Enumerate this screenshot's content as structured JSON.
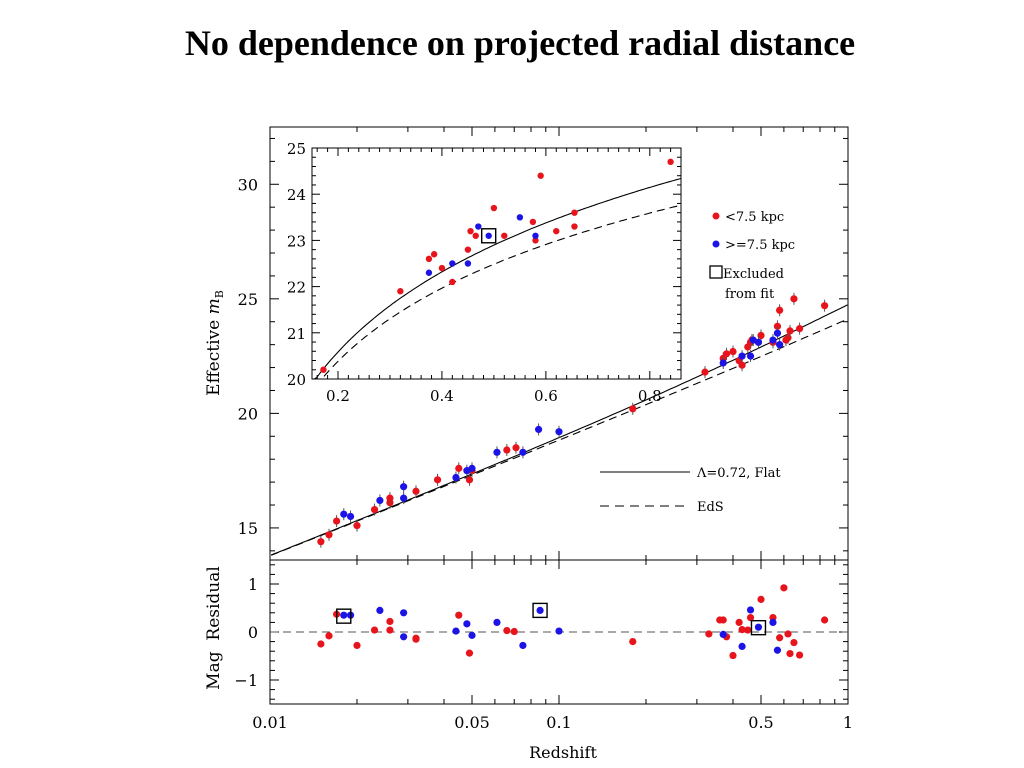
{
  "slide": {
    "title": "No dependence on projected radial distance"
  },
  "colors": {
    "inner": "#e8141c",
    "outer": "#1c14e6"
  },
  "chart_data": [
    {
      "type": "scatter",
      "panel": "main",
      "xscale": "log",
      "xlim": [
        0.01,
        1
      ],
      "ylim": [
        13.6,
        32.5
      ],
      "xlabel": "Redshift",
      "ylabel": "Effective m_B",
      "ylabel_main": "Effective ",
      "ylabel_italic": "m",
      "ylabel_sub": "B",
      "xticks": [
        0.01,
        0.05,
        0.1,
        0.5,
        1
      ],
      "xtick_labels": [
        "0.01",
        "0.05",
        "0.1",
        "0.5",
        "1"
      ],
      "yticks": [
        15,
        20,
        25,
        30
      ],
      "ytick_labels": [
        "15",
        "20",
        "25",
        "30"
      ],
      "models_legend": [
        {
          "label": "Λ=0.72, Flat",
          "style": "solid"
        },
        {
          "label": "EdS",
          "style": "dashed"
        }
      ],
      "series": [
        {
          "name": "<7.5 kpc",
          "color": "#e8141c",
          "points": [
            [
              0.015,
              14.4
            ],
            [
              0.016,
              14.7
            ],
            [
              0.017,
              15.3
            ],
            [
              0.02,
              15.1
            ],
            [
              0.023,
              15.8
            ],
            [
              0.026,
              16.1
            ],
            [
              0.026,
              16.3
            ],
            [
              0.032,
              16.6
            ],
            [
              0.038,
              17.1
            ],
            [
              0.045,
              17.6
            ],
            [
              0.049,
              17.1
            ],
            [
              0.05,
              17.5
            ],
            [
              0.066,
              18.4
            ],
            [
              0.071,
              18.5
            ],
            [
              0.18,
              20.2
            ],
            [
              0.32,
              21.8
            ],
            [
              0.37,
              22.4
            ],
            [
              0.38,
              22.6
            ],
            [
              0.4,
              22.7
            ],
            [
              0.42,
              22.3
            ],
            [
              0.43,
              22.1
            ],
            [
              0.45,
              22.9
            ],
            [
              0.46,
              23.1
            ],
            [
              0.465,
              23.2
            ],
            [
              0.5,
              23.4
            ],
            [
              0.55,
              23.1
            ],
            [
              0.57,
              23.8
            ],
            [
              0.58,
              24.5
            ],
            [
              0.62,
              23.3
            ],
            [
              0.63,
              23.6
            ],
            [
              0.65,
              25.0
            ],
            [
              0.68,
              23.7
            ],
            [
              0.83,
              24.7
            ],
            [
              0.61,
              23.2
            ]
          ]
        },
        {
          "name": ">=7.5 kpc",
          "color": "#1c14e6",
          "points": [
            [
              0.018,
              15.6
            ],
            [
              0.019,
              15.5
            ],
            [
              0.024,
              16.2
            ],
            [
              0.029,
              16.3
            ],
            [
              0.029,
              16.8
            ],
            [
              0.044,
              17.2
            ],
            [
              0.048,
              17.5
            ],
            [
              0.05,
              17.6
            ],
            [
              0.061,
              18.3
            ],
            [
              0.075,
              18.3
            ],
            [
              0.085,
              19.3
            ],
            [
              0.1,
              19.2
            ],
            [
              0.37,
              22.2
            ],
            [
              0.43,
              22.5
            ],
            [
              0.46,
              22.5
            ],
            [
              0.47,
              23.2
            ],
            [
              0.49,
              23.1
            ],
            [
              0.55,
              23.2
            ],
            [
              0.57,
              23.5
            ],
            [
              0.58,
              23.0
            ]
          ]
        }
      ],
      "excluded": []
    },
    {
      "type": "scatter",
      "panel": "inset",
      "xlim": [
        0.15,
        0.86
      ],
      "ylim": [
        20,
        25
      ],
      "xticks": [
        0.2,
        0.4,
        0.6,
        0.8
      ],
      "xtick_labels": [
        "0.2",
        "0.4",
        "0.6",
        "0.8"
      ],
      "yticks": [
        20,
        21,
        22,
        23,
        24,
        25
      ],
      "ytick_labels": [
        "20",
        "21",
        "22",
        "23",
        "24",
        "25"
      ],
      "legend": [
        {
          "label": "<7.5 kpc",
          "marker": "red-dot"
        },
        {
          "label": ">=7.5 kpc",
          "marker": "blue-dot"
        },
        {
          "label": "Excluded",
          "marker": "square"
        },
        {
          "label": "from fit",
          "marker": "none"
        }
      ],
      "series": [
        {
          "name": "<7.5 kpc",
          "color": "#e8141c",
          "points": [
            [
              0.172,
              20.2
            ],
            [
              0.32,
              21.9
            ],
            [
              0.375,
              22.6
            ],
            [
              0.385,
              22.7
            ],
            [
              0.4,
              22.4
            ],
            [
              0.42,
              22.1
            ],
            [
              0.45,
              22.8
            ],
            [
              0.455,
              23.2
            ],
            [
              0.465,
              23.1
            ],
            [
              0.5,
              23.7
            ],
            [
              0.52,
              23.1
            ],
            [
              0.575,
              23.4
            ],
            [
              0.58,
              23.0
            ],
            [
              0.59,
              24.4
            ],
            [
              0.62,
              23.2
            ],
            [
              0.655,
              23.6
            ],
            [
              0.655,
              23.3
            ],
            [
              0.84,
              24.7
            ]
          ]
        },
        {
          "name": ">=7.5 kpc",
          "color": "#1c14e6",
          "points": [
            [
              0.375,
              22.3
            ],
            [
              0.42,
              22.5
            ],
            [
              0.45,
              22.5
            ],
            [
              0.47,
              23.3
            ],
            [
              0.49,
              23.1
            ],
            [
              0.55,
              23.5
            ],
            [
              0.58,
              23.1
            ]
          ]
        }
      ],
      "excluded": [
        [
          0.49,
          23.1
        ]
      ]
    },
    {
      "type": "scatter",
      "panel": "residual",
      "xscale": "log",
      "xlim": [
        0.01,
        1
      ],
      "ylim": [
        -1.5,
        1.5
      ],
      "ylabel": "Mag  Residual",
      "yticks": [
        1,
        0,
        -1
      ],
      "ytick_labels": [
        "1",
        "0",
        "−1"
      ],
      "series": [
        {
          "name": "<7.5 kpc",
          "color": "#e8141c",
          "points": [
            [
              0.015,
              -0.25
            ],
            [
              0.016,
              -0.08
            ],
            [
              0.017,
              0.37
            ],
            [
              0.02,
              -0.28
            ],
            [
              0.023,
              0.04
            ],
            [
              0.026,
              0.04
            ],
            [
              0.026,
              0.22
            ],
            [
              0.032,
              -0.13
            ],
            [
              0.032,
              -0.15
            ],
            [
              0.045,
              0.35
            ],
            [
              0.049,
              -0.44
            ],
            [
              0.066,
              0.03
            ],
            [
              0.07,
              0.01
            ],
            [
              0.18,
              -0.2
            ],
            [
              0.33,
              -0.04
            ],
            [
              0.36,
              0.25
            ],
            [
              0.37,
              0.25
            ],
            [
              0.38,
              -0.1
            ],
            [
              0.4,
              -0.49
            ],
            [
              0.42,
              0.2
            ],
            [
              0.43,
              0.05
            ],
            [
              0.45,
              0.04
            ],
            [
              0.46,
              0.3
            ],
            [
              0.5,
              0.68
            ],
            [
              0.55,
              0.3
            ],
            [
              0.58,
              -0.12
            ],
            [
              0.6,
              0.92
            ],
            [
              0.62,
              -0.04
            ],
            [
              0.63,
              -0.45
            ],
            [
              0.65,
              -0.22
            ],
            [
              0.68,
              -0.48
            ],
            [
              0.83,
              0.25
            ]
          ]
        },
        {
          "name": ">=7.5 kpc",
          "color": "#1c14e6",
          "points": [
            [
              0.018,
              0.35
            ],
            [
              0.019,
              0.35
            ],
            [
              0.024,
              0.45
            ],
            [
              0.029,
              -0.1
            ],
            [
              0.029,
              0.4
            ],
            [
              0.044,
              0.02
            ],
            [
              0.048,
              0.17
            ],
            [
              0.05,
              -0.07
            ],
            [
              0.061,
              0.2
            ],
            [
              0.075,
              -0.28
            ],
            [
              0.086,
              0.45
            ],
            [
              0.1,
              0.02
            ],
            [
              0.37,
              -0.05
            ],
            [
              0.43,
              -0.3
            ],
            [
              0.46,
              0.46
            ],
            [
              0.49,
              0.1
            ],
            [
              0.55,
              0.2
            ],
            [
              0.57,
              -0.38
            ]
          ]
        }
      ],
      "excluded": [
        [
          0.018,
          0.33
        ],
        [
          0.086,
          0.45
        ],
        [
          0.49,
          0.09
        ]
      ]
    }
  ]
}
